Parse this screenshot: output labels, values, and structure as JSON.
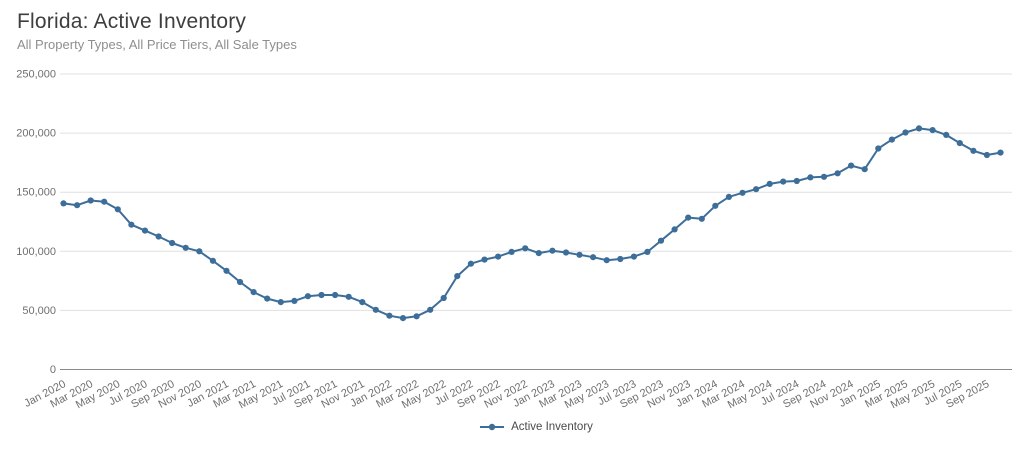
{
  "header": {
    "title": "Florida: Active Inventory",
    "subtitle": "All Property Types, All Price Tiers, All Sale Types"
  },
  "legend": {
    "items": [
      {
        "label": "Active Inventory",
        "color": "#3d6e99"
      }
    ]
  },
  "colors": {
    "line": "#3d6e99",
    "marker": "#3d6e99",
    "gridline": "#e0e0e0",
    "zero_axis": "#8a8a8a",
    "axis_text": "#6f6f6f",
    "title_text": "#3e3e3e",
    "subtitle_text": "#8e8e8e",
    "background": "#ffffff"
  },
  "chart_data": {
    "type": "line",
    "title": "Florida: Active Inventory",
    "subtitle": "All Property Types, All Price Tiers, All Sale Types",
    "x": [
      "Jan 2020",
      "Feb 2020",
      "Mar 2020",
      "Apr 2020",
      "May 2020",
      "Jun 2020",
      "Jul 2020",
      "Aug 2020",
      "Sep 2020",
      "Oct 2020",
      "Nov 2020",
      "Dec 2020",
      "Jan 2021",
      "Feb 2021",
      "Mar 2021",
      "Apr 2021",
      "May 2021",
      "Jun 2021",
      "Jul 2021",
      "Aug 2021",
      "Sep 2021",
      "Oct 2021",
      "Nov 2021",
      "Dec 2021",
      "Jan 2022",
      "Feb 2022",
      "Mar 2022",
      "Apr 2022",
      "May 2022",
      "Jun 2022",
      "Jul 2022",
      "Aug 2022",
      "Sep 2022",
      "Oct 2022",
      "Nov 2022",
      "Dec 2022",
      "Jan 2023",
      "Feb 2023",
      "Mar 2023",
      "Apr 2023",
      "May 2023",
      "Jun 2023",
      "Jul 2023",
      "Aug 2023",
      "Sep 2023",
      "Oct 2023",
      "Nov 2023",
      "Dec 2023",
      "Jan 2024",
      "Feb 2024",
      "Mar 2024",
      "Apr 2024",
      "May 2024",
      "Jun 2024",
      "Jul 2024",
      "Aug 2024",
      "Sep 2024",
      "Oct 2024",
      "Nov 2024",
      "Dec 2024",
      "Jan 2025",
      "Feb 2025",
      "Mar 2025",
      "Apr 2025",
      "May 2025",
      "Jun 2025",
      "Jul 2025",
      "Aug 2025",
      "Sep 2025",
      "Oct 2025"
    ],
    "series": [
      {
        "name": "Active Inventory",
        "color": "#3d6e99",
        "values": [
          140500,
          139000,
          143000,
          142000,
          135500,
          122500,
          117500,
          112500,
          107000,
          103000,
          100000,
          92000,
          83500,
          74000,
          65500,
          60000,
          57000,
          58000,
          62000,
          63000,
          63000,
          61500,
          57000,
          50500,
          45500,
          43500,
          45000,
          50500,
          60500,
          79000,
          89500,
          93000,
          95500,
          99500,
          102500,
          98500,
          100500,
          99000,
          97000,
          95000,
          92500,
          93500,
          95500,
          99500,
          109000,
          118500,
          128500,
          127500,
          138500,
          146000,
          149500,
          152500,
          157000,
          159000,
          159500,
          162500,
          163000,
          166000,
          172500,
          169500,
          187000,
          194500,
          200500,
          204000,
          202500,
          198500,
          191500,
          185000,
          181500,
          183500
        ]
      }
    ],
    "ylim": [
      0,
      250000
    ],
    "y_ticks": [
      0,
      50000,
      100000,
      150000,
      200000,
      250000
    ],
    "y_tick_format": "thousands-comma",
    "x_tick_every": 2,
    "x_tick_rotation": -28,
    "grid": "horizontal-only",
    "legend_position": "bottom-center",
    "marker": "circle",
    "xlabel": "",
    "ylabel": ""
  }
}
